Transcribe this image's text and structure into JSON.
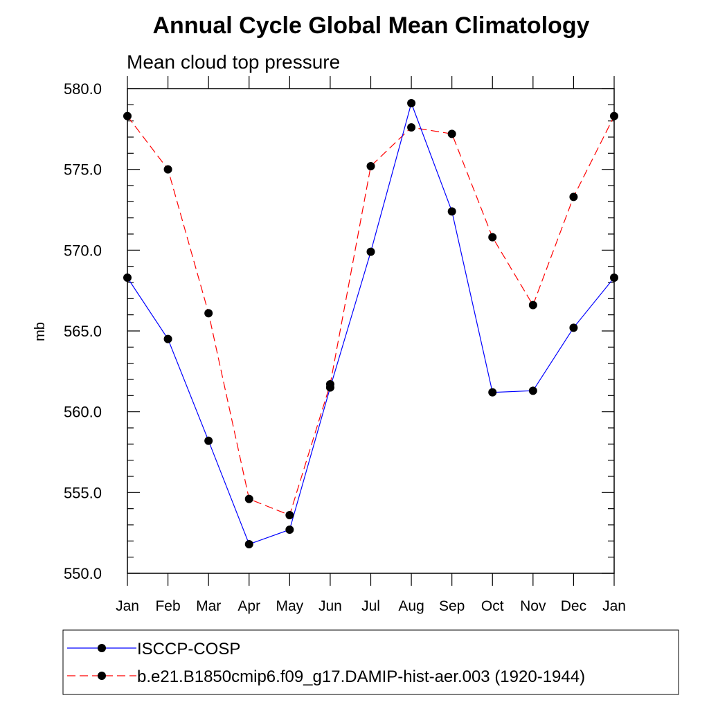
{
  "chart_data": {
    "type": "line",
    "title": "Annual Cycle Global Mean Climatology",
    "subtitle": "Mean cloud top pressure",
    "xlabel": "",
    "ylabel": "mb",
    "categories": [
      "Jan",
      "Feb",
      "Mar",
      "Apr",
      "May",
      "Jun",
      "Jul",
      "Aug",
      "Sep",
      "Oct",
      "Nov",
      "Dec",
      "Jan"
    ],
    "yticks": [
      "550.0",
      "555.0",
      "560.0",
      "565.0",
      "570.0",
      "575.0",
      "580.0"
    ],
    "ylim": [
      550,
      580
    ],
    "grid": false,
    "legend_position": "bottom",
    "series": [
      {
        "name": "ISCCP-COSP",
        "color": "#0000ff",
        "dash": "solid",
        "values": [
          568.3,
          564.5,
          558.2,
          551.8,
          552.7,
          561.5,
          569.9,
          579.1,
          572.4,
          561.2,
          561.3,
          565.2,
          568.3
        ]
      },
      {
        "name": "b.e21.B1850cmip6.f09_g17.DAMIP-hist-aer.003 (1920-1944)",
        "color": "#ff0000",
        "dash": "dashed",
        "values": [
          578.3,
          575.0,
          566.1,
          554.6,
          553.6,
          561.7,
          575.2,
          577.6,
          577.2,
          570.8,
          566.6,
          573.3,
          578.3
        ]
      }
    ]
  }
}
